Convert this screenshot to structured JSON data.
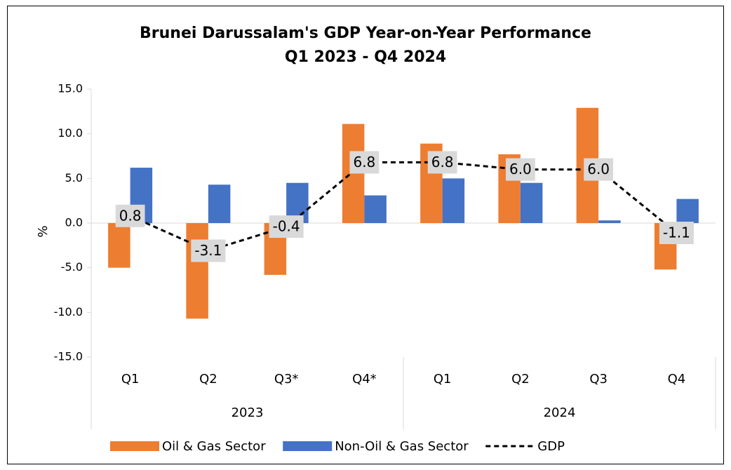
{
  "chart_data": {
    "type": "bar-line",
    "title": "Brunei Darussalam's GDP Year-on-Year Performance",
    "subtitle": "Q1 2023 - Q4 2024",
    "ylabel": "%",
    "categories": [
      "Q1",
      "Q2",
      "Q3*",
      "Q4*",
      "Q1",
      "Q2",
      "Q3",
      "Q4"
    ],
    "groups": [
      "2023",
      "2024"
    ],
    "ylim": [
      -15,
      15
    ],
    "yticks": [
      {
        "value": -15,
        "label": "-15.0"
      },
      {
        "value": -10,
        "label": "-10.0"
      },
      {
        "value": -5,
        "label": "-5.0"
      },
      {
        "value": 0,
        "label": "0.0"
      },
      {
        "value": 5,
        "label": "5.0"
      },
      {
        "value": 10,
        "label": "10.0"
      },
      {
        "value": 15,
        "label": "15.0"
      }
    ],
    "series": [
      {
        "name": "Oil & Gas Sector",
        "type": "bar",
        "color": "#ed7d31",
        "values": [
          -5.0,
          -10.7,
          -5.8,
          11.1,
          8.9,
          7.7,
          12.9,
          -5.2
        ]
      },
      {
        "name": "Non-Oil & Gas Sector",
        "type": "bar",
        "color": "#4472c4",
        "values": [
          6.2,
          4.3,
          4.5,
          3.1,
          5.0,
          4.5,
          0.3,
          2.7
        ]
      },
      {
        "name": "GDP",
        "type": "line",
        "color": "#000000",
        "values": [
          0.8,
          -3.1,
          -0.4,
          6.8,
          6.8,
          6.0,
          6.0,
          -1.1
        ],
        "value_labels": [
          "0.8",
          "-3.1",
          "-0.4",
          "6.8",
          "6.8",
          "6.0",
          "6.0",
          "-1.1"
        ]
      }
    ]
  }
}
